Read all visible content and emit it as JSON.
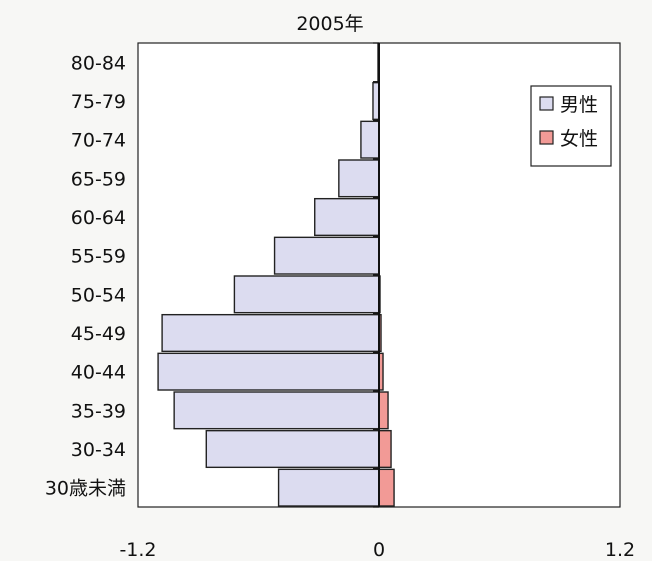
{
  "chart_data": {
    "type": "bar",
    "subtype": "population-pyramid",
    "title": "2005年",
    "categories": [
      "30歳未満",
      "30-34",
      "35-39",
      "40-44",
      "45-49",
      "50-54",
      "55-59",
      "60-64",
      "65-59",
      "70-74",
      "75-79",
      "80-84"
    ],
    "series": [
      {
        "name": "男性",
        "color": "#dcdcf0",
        "values": [
          -0.5,
          -0.86,
          -1.02,
          -1.1,
          -1.08,
          -0.72,
          -0.52,
          -0.32,
          -0.2,
          -0.09,
          -0.03,
          -0.005
        ]
      },
      {
        "name": "女性",
        "color": "#f29a96",
        "values": [
          0.075,
          0.06,
          0.045,
          0.02,
          0.01,
          0.005,
          0,
          0,
          0,
          0,
          0,
          0
        ]
      }
    ],
    "xlim": [
      -1.2,
      1.2
    ],
    "xticks": [
      "-1.2",
      "0",
      "1.2"
    ],
    "legend_position": "right",
    "grid": false
  }
}
